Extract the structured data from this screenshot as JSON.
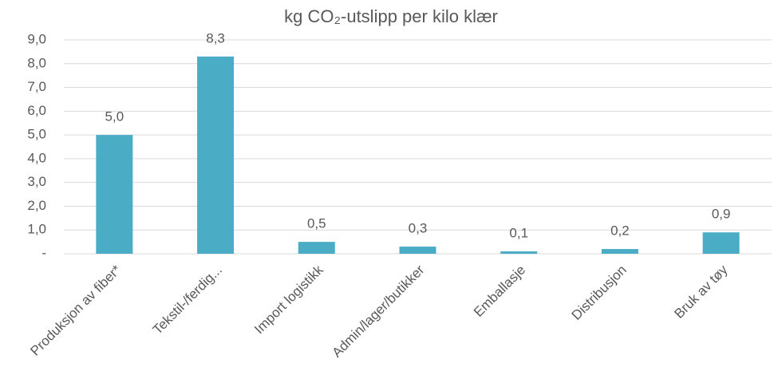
{
  "chart_data": {
    "type": "bar",
    "title": "kg CO₂-utslipp per kilo klær",
    "categories": [
      "Produksjon av fiber*",
      "Tekstil-/ferdig...",
      "Import logistikk",
      "Admin/lager/butikker",
      "Emballasje",
      "Distribusjon",
      "Bruk av tøy"
    ],
    "values": [
      5.0,
      8.3,
      0.5,
      0.3,
      0.1,
      0.2,
      0.9
    ],
    "value_labels": [
      "5,0",
      "8,3",
      "0,5",
      "0,3",
      "0,1",
      "0,2",
      "0,9"
    ],
    "color": "#4bacc6",
    "ylim": [
      0,
      9
    ],
    "yticks": [
      {
        "value": 0,
        "label": "-"
      },
      {
        "value": 1,
        "label": "1,0"
      },
      {
        "value": 2,
        "label": "2,0"
      },
      {
        "value": 3,
        "label": "3,0"
      },
      {
        "value": 4,
        "label": "4,0"
      },
      {
        "value": 5,
        "label": "5,0"
      },
      {
        "value": 6,
        "label": "6,0"
      },
      {
        "value": 7,
        "label": "7,0"
      },
      {
        "value": 8,
        "label": "8,0"
      },
      {
        "value": 9,
        "label": "9,0"
      }
    ],
    "grid": true
  }
}
